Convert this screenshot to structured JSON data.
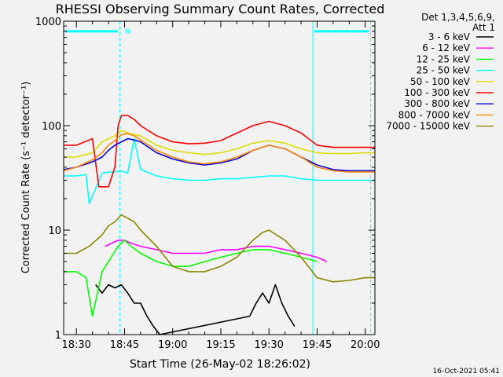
{
  "chart_data": {
    "type": "line",
    "title": "RHESSI Observing Summary Count Rates, Corrected",
    "xlabel": "Start Time (26-May-02 18:26:02)",
    "ylabel": "Corrected Count Rate (s⁻¹ detector⁻¹)",
    "yscale": "log",
    "xlim": [
      "18:26:02",
      "20:03:00"
    ],
    "ylim": [
      1,
      1000
    ],
    "x_ticks": [
      "18:30",
      "18:45",
      "19:00",
      "19:15",
      "19:30",
      "19:45",
      "20:00"
    ],
    "y_ticks": [
      "1",
      "10",
      "100",
      "1000"
    ],
    "grid": false,
    "legend_header": [
      "Det 1,3,4,5,6,9,",
      "Att 1"
    ],
    "legend_position": "top-right",
    "timestamp": "16-Oct-2021 05:41",
    "flag_label": "N",
    "night_bars": [
      {
        "start": "18:26:02",
        "end": "18:43:30",
        "level": 800,
        "marker": "18:43:30"
      },
      {
        "start": "19:43:40",
        "end": "20:01:40",
        "level": 800,
        "marker": "20:01:40"
      }
    ],
    "series": [
      {
        "name": "3 - 6 keV",
        "color": "#000000",
        "x": [
          "18:36",
          "18:38",
          "18:40",
          "18:42",
          "18:44",
          "18:46",
          "18:48",
          "18:50",
          "18:52",
          "18:54",
          "18:56",
          "19:24",
          "19:26",
          "19:28",
          "19:30",
          "19:32",
          "19:34",
          "19:36",
          "19:38"
        ],
        "values": [
          3,
          2.5,
          3,
          2.8,
          3,
          2.5,
          2,
          2,
          1.5,
          1.2,
          1,
          1.5,
          2,
          2.5,
          2,
          3,
          2,
          1.5,
          1.2
        ]
      },
      {
        "name": "6 - 12 keV",
        "color": "#ff00ff",
        "x": [
          "18:39",
          "18:41",
          "18:43",
          "18:45",
          "18:47",
          "18:50",
          "18:55",
          "19:00",
          "19:05",
          "19:10",
          "19:15",
          "19:20",
          "19:25",
          "19:30",
          "19:35",
          "19:40",
          "19:45",
          "19:48"
        ],
        "values": [
          7,
          7.5,
          8,
          8,
          7.5,
          7,
          6.5,
          6,
          6,
          6,
          6.5,
          6.5,
          7,
          7,
          6.5,
          6,
          5.5,
          5
        ]
      },
      {
        "name": "12 - 25 keV",
        "color": "#00ff00",
        "x": [
          "18:26",
          "18:30",
          "18:33",
          "18:35",
          "18:38",
          "18:40",
          "18:43",
          "18:45",
          "18:47",
          "18:50",
          "18:55",
          "19:00",
          "19:05",
          "19:10",
          "19:15",
          "19:20",
          "19:25",
          "19:30",
          "19:35",
          "19:40",
          "19:45"
        ],
        "values": [
          4,
          4,
          3.5,
          1.5,
          4,
          5,
          7,
          8,
          7,
          6,
          5,
          4.5,
          4.5,
          5,
          5.5,
          6,
          6.5,
          6.5,
          6,
          5.5,
          5
        ]
      },
      {
        "name": "25 - 50 keV",
        "color": "#00ffff",
        "x": [
          "18:26",
          "18:30",
          "18:33",
          "18:34",
          "18:36",
          "18:38",
          "18:40",
          "18:42",
          "18:44",
          "18:46",
          "18:48",
          "18:50",
          "18:55",
          "19:00",
          "19:05",
          "19:10",
          "19:15",
          "19:20",
          "19:25",
          "19:30",
          "19:35",
          "19:40",
          "19:45",
          "19:50",
          "19:55",
          "20:00",
          "20:03"
        ],
        "values": [
          33,
          33,
          34,
          18,
          25,
          35,
          36,
          36,
          37,
          35,
          75,
          38,
          33,
          31,
          30,
          30,
          31,
          31,
          32,
          33,
          33,
          31,
          30,
          30,
          30,
          30,
          30
        ]
      },
      {
        "name": "50 - 100 keV",
        "color": "#dddd00",
        "x": [
          "18:26",
          "18:30",
          "18:35",
          "18:38",
          "18:40",
          "18:42",
          "18:44",
          "18:46",
          "18:48",
          "18:50",
          "18:55",
          "19:00",
          "19:05",
          "19:10",
          "19:15",
          "19:20",
          "19:25",
          "19:30",
          "19:35",
          "19:40",
          "19:45",
          "19:50",
          "19:55",
          "20:00",
          "20:03"
        ],
        "values": [
          50,
          50,
          55,
          70,
          75,
          80,
          90,
          85,
          82,
          80,
          65,
          58,
          55,
          53,
          55,
          60,
          68,
          72,
          68,
          60,
          55,
          54,
          54,
          55,
          55
        ]
      },
      {
        "name": "100 - 300 keV",
        "color": "#ff0000",
        "x": [
          "18:26",
          "18:30",
          "18:35",
          "18:37",
          "18:40",
          "18:42",
          "18:43",
          "18:44",
          "18:46",
          "18:48",
          "18:50",
          "18:55",
          "19:00",
          "19:05",
          "19:10",
          "19:15",
          "19:20",
          "19:25",
          "19:30",
          "19:35",
          "19:40",
          "19:45",
          "19:50",
          "19:55",
          "20:00",
          "20:03"
        ],
        "values": [
          65,
          65,
          75,
          26,
          26,
          40,
          100,
          125,
          125,
          115,
          100,
          80,
          70,
          67,
          68,
          72,
          85,
          100,
          110,
          100,
          85,
          65,
          62,
          62,
          62,
          62
        ]
      },
      {
        "name": "300 - 800 keV",
        "color": "#0000dd",
        "x": [
          "18:26",
          "18:30",
          "18:35",
          "18:38",
          "18:40",
          "18:42",
          "18:44",
          "18:46",
          "18:48",
          "18:50",
          "18:55",
          "19:00",
          "19:05",
          "19:10",
          "19:15",
          "19:20",
          "19:25",
          "19:30",
          "19:35",
          "19:40",
          "19:45",
          "19:50",
          "19:55",
          "20:00",
          "20:03"
        ],
        "values": [
          38,
          40,
          45,
          50,
          58,
          65,
          70,
          75,
          73,
          70,
          55,
          48,
          44,
          42,
          44,
          48,
          58,
          65,
          60,
          50,
          42,
          38,
          37,
          37,
          37
        ]
      },
      {
        "name": "800 - 7000 keV",
        "color": "#ff8800",
        "x": [
          "18:26",
          "18:30",
          "18:35",
          "18:38",
          "18:40",
          "18:42",
          "18:44",
          "18:46",
          "18:48",
          "18:50",
          "18:55",
          "19:00",
          "19:05",
          "19:10",
          "19:15",
          "19:20",
          "19:25",
          "19:30",
          "19:35",
          "19:40",
          "19:45",
          "19:50",
          "19:55",
          "20:00",
          "20:03"
        ],
        "values": [
          37,
          40,
          47,
          55,
          65,
          72,
          82,
          84,
          80,
          73,
          58,
          50,
          45,
          43,
          45,
          50,
          58,
          65,
          60,
          50,
          40,
          37,
          36,
          36,
          36
        ]
      },
      {
        "name": "7000 - 15000 keV",
        "color": "#888800",
        "x": [
          "18:26",
          "18:30",
          "18:34",
          "18:38",
          "18:40",
          "18:42",
          "18:44",
          "18:46",
          "18:48",
          "18:50",
          "18:55",
          "19:00",
          "19:05",
          "19:10",
          "19:15",
          "19:20",
          "19:25",
          "19:28",
          "19:30",
          "19:35",
          "19:40",
          "19:45",
          "19:50",
          "19:55",
          "20:00",
          "20:03"
        ],
        "values": [
          6,
          6,
          7,
          9,
          11,
          12,
          14,
          13,
          12,
          10,
          7,
          4.5,
          4,
          4,
          4.5,
          5.5,
          8,
          9.5,
          10,
          8,
          5.5,
          3.5,
          3.2,
          3.3,
          3.5,
          3.5
        ]
      }
    ]
  }
}
